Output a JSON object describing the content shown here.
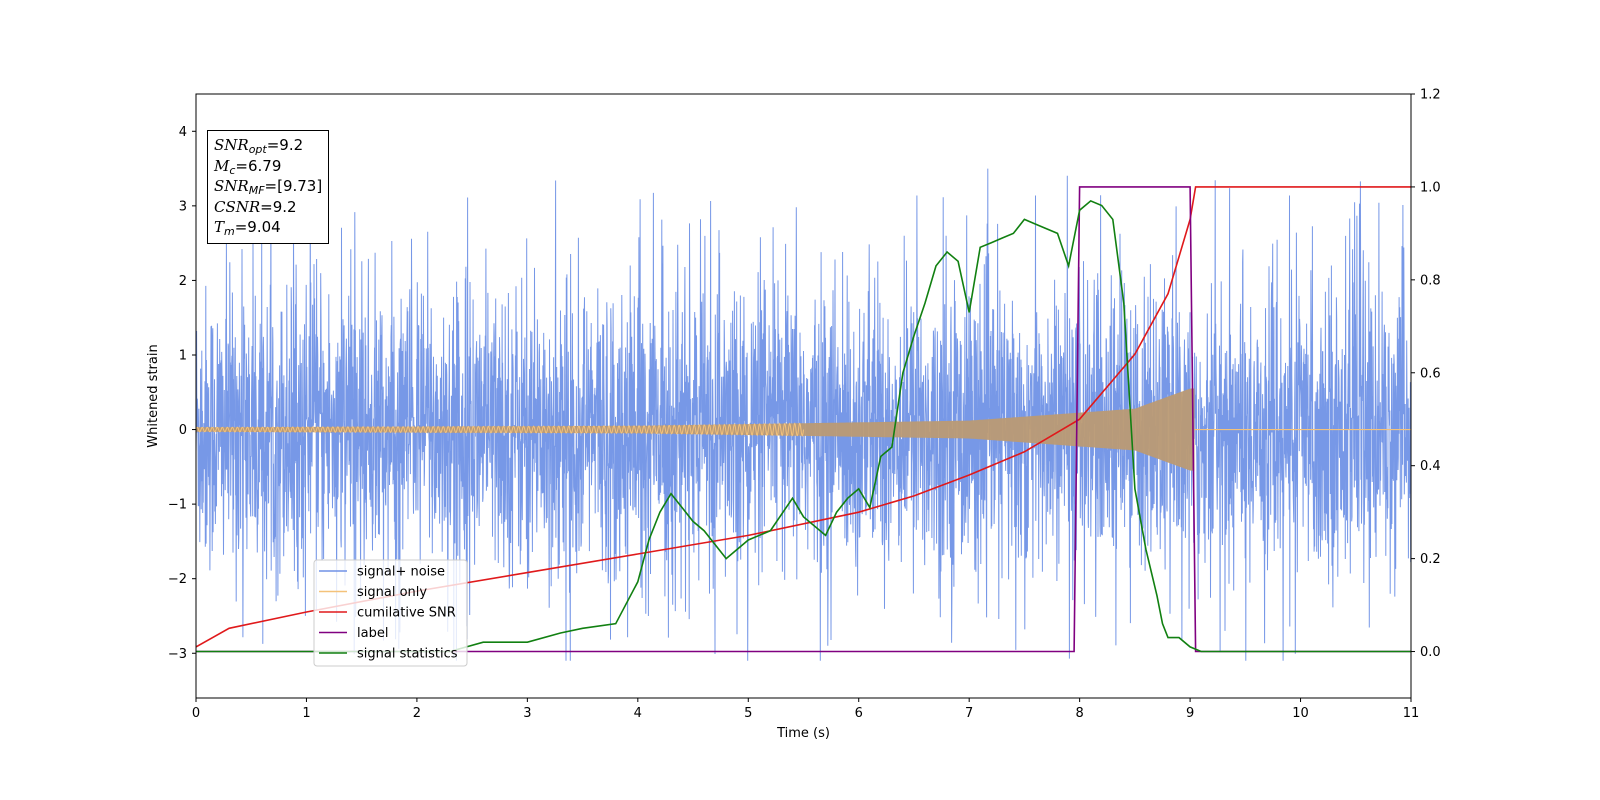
{
  "chart_data": {
    "type": "line",
    "xlabel": "Time (s)",
    "ylabel": "Whitened strain",
    "xlim": [
      0,
      11
    ],
    "ylim": [
      -3.6,
      4.5
    ],
    "y2lim": [
      -0.1,
      1.2
    ],
    "x_ticks": [
      "0",
      "1",
      "2",
      "3",
      "4",
      "5",
      "6",
      "7",
      "8",
      "9",
      "10",
      "11"
    ],
    "y_ticks": [
      "−3",
      "−2",
      "−1",
      "0",
      "1",
      "2",
      "3",
      "4"
    ],
    "y2_ticks": [
      "0.0",
      "0.2",
      "0.4",
      "0.6",
      "0.8",
      "1.0",
      "1.2"
    ],
    "annotation": {
      "snr_opt": {
        "name": "SNR",
        "sub": "opt",
        "value": "=9.2"
      },
      "mc": {
        "name": "M",
        "sub": "c",
        "value": "=6.79"
      },
      "snr_mf": {
        "name": "SNR",
        "sub": "MF",
        "value": "=[9.73]"
      },
      "csnr": {
        "name": "CSNR",
        "value": "=9.2"
      },
      "tm": {
        "name": "T",
        "sub": "m",
        "value": "=9.04"
      }
    },
    "legend": {
      "position": "lower-left",
      "entries": [
        {
          "label": "signal+ noise",
          "color": "#7092e6"
        },
        {
          "label": "signal only",
          "color": "#f4c27a"
        },
        {
          "label": "cumilative SNR",
          "color": "#e0191b"
        },
        {
          "label": "label",
          "color": "#800080"
        },
        {
          "label": "signal statistics",
          "color": "#118011"
        }
      ]
    },
    "series": [
      {
        "name": "signal+ noise",
        "axis": "left",
        "description": "whitened strain noise, roughly uniform amplitude, spikes to about ±3.5",
        "noise_sigma": 1.0,
        "max": 3.5,
        "min": -3.1
      },
      {
        "name": "signal only",
        "axis": "left",
        "description": "chirp with amplitude growing from ~0.03 at t=0 to ~0.55 at t=9.04, zero afterwards",
        "amplitude_points": [
          [
            0,
            0.03
          ],
          [
            4,
            0.05
          ],
          [
            7,
            0.12
          ],
          [
            8.5,
            0.28
          ],
          [
            9.0,
            0.55
          ],
          [
            9.04,
            0.55
          ]
        ],
        "end_time": 9.04
      },
      {
        "name": "cumilative SNR",
        "axis": "right",
        "x": [
          0,
          0.3,
          1,
          2,
          3,
          4,
          5,
          6,
          6.5,
          7,
          7.5,
          8,
          8.5,
          8.8,
          9.0,
          9.05,
          11
        ],
        "y": [
          0.01,
          0.05,
          0.085,
          0.13,
          0.17,
          0.21,
          0.25,
          0.3,
          0.335,
          0.38,
          0.43,
          0.5,
          0.64,
          0.77,
          0.93,
          1.0,
          1.0
        ]
      },
      {
        "name": "label",
        "axis": "right",
        "x": [
          0,
          7.95,
          8.0,
          9.0,
          9.05,
          11
        ],
        "y": [
          0,
          0,
          1,
          1,
          0,
          0
        ]
      },
      {
        "name": "signal statistics",
        "axis": "right",
        "x": [
          0,
          2.3,
          2.6,
          3,
          3.3,
          3.5,
          3.8,
          4.0,
          4.1,
          4.2,
          4.3,
          4.4,
          4.5,
          4.6,
          4.8,
          5.0,
          5.2,
          5.4,
          5.5,
          5.7,
          5.8,
          5.9,
          6.0,
          6.1,
          6.2,
          6.3,
          6.4,
          6.5,
          6.6,
          6.7,
          6.8,
          6.9,
          7.0,
          7.1,
          7.2,
          7.3,
          7.4,
          7.5,
          7.6,
          7.8,
          7.9,
          8.0,
          8.1,
          8.2,
          8.3,
          8.4,
          8.5,
          8.6,
          8.7,
          8.75,
          8.8,
          8.9,
          9.0,
          9.1,
          11
        ],
        "y": [
          0,
          0,
          0.02,
          0.02,
          0.04,
          0.05,
          0.06,
          0.15,
          0.24,
          0.3,
          0.34,
          0.31,
          0.28,
          0.26,
          0.2,
          0.24,
          0.26,
          0.33,
          0.29,
          0.25,
          0.3,
          0.33,
          0.35,
          0.31,
          0.42,
          0.44,
          0.6,
          0.68,
          0.75,
          0.83,
          0.86,
          0.84,
          0.73,
          0.87,
          0.88,
          0.89,
          0.9,
          0.93,
          0.92,
          0.9,
          0.83,
          0.95,
          0.97,
          0.96,
          0.93,
          0.75,
          0.35,
          0.22,
          0.12,
          0.06,
          0.03,
          0.03,
          0.01,
          0.0,
          0.0
        ]
      }
    ],
    "colors": {
      "noise": "#7092e6",
      "signal": "#f4c27a",
      "signal_overlap": "#bb9a74",
      "snr": "#e0191b",
      "label": "#800080",
      "stats": "#118011"
    }
  }
}
